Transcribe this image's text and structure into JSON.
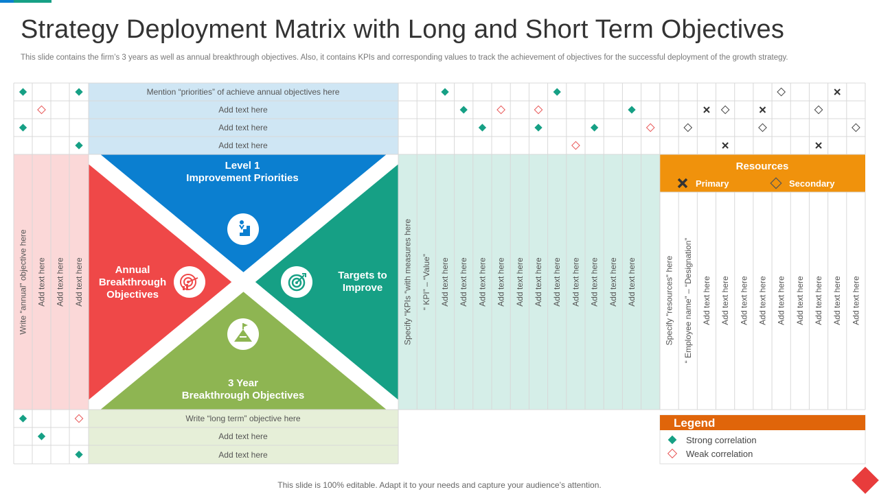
{
  "title": "Strategy Deployment Matrix with Long and Short Term Objectives",
  "subtitle": "This slide contains the firm’s 3 years as well as annual breakthrough objectives. Also, it contains KPIs and corresponding values to track the achievement of objectives for the successful deployment of the growth strategy.",
  "footer": "This slide is 100% editable. Adapt it to your needs and capture your audience’s attention.",
  "colors": {
    "blue": "#0b7fd0",
    "green": "#16a085",
    "red": "#ef4848",
    "lime": "#8eb552",
    "orange": "#f0920c",
    "legend_orange": "#e0650a",
    "teal_mark": "#16a085",
    "weak_mark": "#e85555"
  },
  "priorities": [
    "Mention “priorities” of achieve annual objectives here",
    "Add text here",
    "Add text here",
    "Add text here"
  ],
  "long_term": [
    "Write “long term” objective here",
    "Add text here",
    "Add text here"
  ],
  "annual_cols": [
    "Write “annual” objective here",
    "Add text here",
    "Add text here",
    "Add text here"
  ],
  "kpi_cols": [
    "Specify “KPIs “with measures here",
    "“ KPI” – “Value”",
    "Add text here",
    "Add text here",
    "Add text here",
    "Add text here",
    "Add text here",
    "Add text here",
    "Add text here",
    "Add text here",
    "Add text here",
    "Add text here",
    "Add text here"
  ],
  "resource_cols": [
    "Specify “resources“ here",
    "“ Employee name” – “Designation”",
    "Add text here",
    "Add text here",
    "Add text here",
    "Add text here",
    "Add text here",
    "Add text here",
    "Add text here",
    "Add text here",
    "Add text here"
  ],
  "panels": {
    "top": [
      "Level 1",
      "Improvement Priorities"
    ],
    "left": [
      "Annual",
      "Breakthrough",
      "Objectives"
    ],
    "right": [
      "Targets to",
      "Improve"
    ],
    "bottom": [
      "3 Year",
      "Breakthrough Objectives"
    ]
  },
  "icons": {
    "top": "stairs-goal-icon",
    "left": "target-chart-icon",
    "right": "target-icon",
    "bottom": "mountain-flag-icon"
  },
  "resources": {
    "title": "Resources",
    "primary": "Primary",
    "secondary": "Secondary"
  },
  "legend": {
    "title": "Legend",
    "strong": "Strong correlation",
    "weak": "Weak correlation"
  },
  "marks": {
    "top_left": [
      [
        0,
        0,
        "S"
      ],
      [
        0,
        3,
        "S"
      ],
      [
        1,
        1,
        "W"
      ],
      [
        2,
        0,
        "S"
      ],
      [
        3,
        3,
        "S"
      ]
    ],
    "top_kpi": [
      [
        0,
        2,
        "S"
      ],
      [
        0,
        8,
        "S"
      ],
      [
        1,
        3,
        "S"
      ],
      [
        1,
        5,
        "W"
      ],
      [
        1,
        7,
        "W"
      ],
      [
        1,
        12,
        "S"
      ],
      [
        2,
        4,
        "S"
      ],
      [
        2,
        7,
        "S"
      ],
      [
        2,
        10,
        "S"
      ],
      [
        2,
        13,
        "W"
      ],
      [
        3,
        9,
        "W"
      ]
    ],
    "top_res": [
      [
        0,
        6,
        "O"
      ],
      [
        0,
        9,
        "X"
      ],
      [
        1,
        2,
        "X"
      ],
      [
        1,
        3,
        "O"
      ],
      [
        1,
        5,
        "X"
      ],
      [
        1,
        8,
        "O"
      ],
      [
        2,
        1,
        "O"
      ],
      [
        2,
        5,
        "O"
      ],
      [
        2,
        10,
        "O"
      ],
      [
        3,
        3,
        "X"
      ],
      [
        3,
        8,
        "X"
      ]
    ],
    "bottom_left": [
      [
        0,
        0,
        "S"
      ],
      [
        0,
        3,
        "W"
      ],
      [
        1,
        1,
        "S"
      ],
      [
        2,
        3,
        "S"
      ]
    ]
  }
}
